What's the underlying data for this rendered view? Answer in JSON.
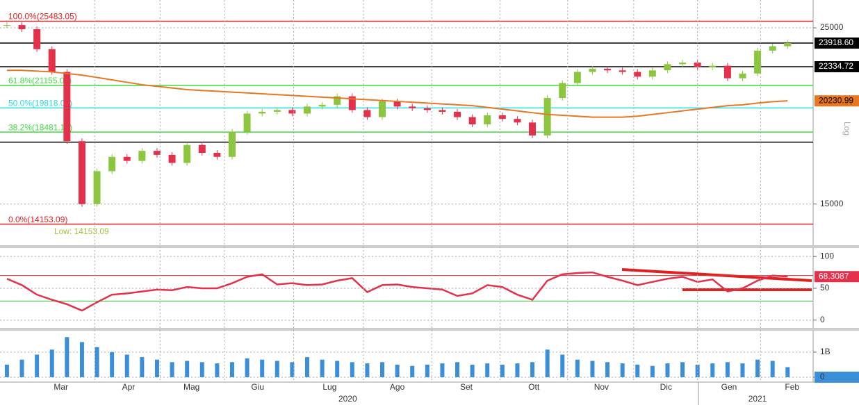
{
  "chart_data": [
    {
      "type": "candlestick",
      "values": [
        25200,
        24900,
        23500,
        22000,
        18000,
        15000,
        16500,
        17200,
        17000,
        17500,
        17300,
        16900,
        17800,
        17400,
        17200,
        18500,
        19500,
        19600,
        19700,
        19500,
        19900,
        20000,
        20500,
        19700,
        19300,
        20200,
        19900,
        19800,
        19700,
        19600,
        19300,
        18900,
        19400,
        19200,
        19000,
        18300,
        20400,
        21300,
        22000,
        22200,
        22100,
        22000,
        21700,
        22100,
        22500,
        22600,
        22300,
        22400,
        21600,
        21900,
        23400,
        23700,
        23918.6
      ],
      "up_color": "#8cc63f",
      "down_color": "#e3304b",
      "ma": {
        "color": "#e87722",
        "values": [
          22100,
          22100,
          22050,
          22000,
          21900,
          21800,
          21650,
          21500,
          21350,
          21200,
          21100,
          21000,
          20900,
          20850,
          20800,
          20750,
          20700,
          20650,
          20600,
          20550,
          20500,
          20450,
          20400,
          20350,
          20300,
          20250,
          20200,
          20150,
          20100,
          20050,
          20000,
          19950,
          19850,
          19750,
          19650,
          19550,
          19450,
          19400,
          19350,
          19300,
          19300,
          19300,
          19350,
          19450,
          19550,
          19650,
          19750,
          19850,
          19950,
          20000,
          20100,
          20180,
          20230.99
        ]
      },
      "ylim": [
        13340,
        27100
      ],
      "log_scale": true,
      "yticks": [
        15000,
        25000
      ],
      "grid": true,
      "axis_label": "Log",
      "levels": [
        {
          "value": 25483.05,
          "label": "100.0%(25483.05)",
          "color": "#e02020"
        },
        {
          "value": 23918.6,
          "tag": "23918.60",
          "color": "#000000"
        },
        {
          "value": 22334.72,
          "tag": "22334.72",
          "color": "#000000"
        },
        {
          "value": 21155.01,
          "label": "61.8%(21155.01)",
          "color": "#3ddc3d"
        },
        {
          "value": 19818.07,
          "label": "50.0%(19818.07)",
          "color": "#2ad8e0"
        },
        {
          "value": 18481.13,
          "label": "38.2%(18481.13)",
          "color": "#3ddc3d"
        },
        {
          "value": 17950,
          "color": "#000000"
        },
        {
          "value": 14153.09,
          "label": "0.0%(14153.09)",
          "color": "#e02020"
        }
      ],
      "annotation": "Low: 14153.09"
    },
    {
      "type": "line",
      "values": [
        65,
        55,
        40,
        32,
        25,
        15,
        28,
        40,
        42,
        45,
        48,
        47,
        52,
        50,
        50,
        58,
        68,
        72,
        56,
        58,
        55,
        56,
        62,
        66,
        44,
        55,
        56,
        52,
        50,
        48,
        38,
        42,
        55,
        52,
        40,
        32,
        62,
        72,
        74,
        75,
        68,
        62,
        55,
        60,
        65,
        68,
        60,
        64,
        45,
        50,
        62,
        70,
        68.3087
      ],
      "color": "#e3304b",
      "ylim": [
        -10,
        110
      ],
      "yticks": [
        0,
        50,
        100
      ],
      "bands": [
        {
          "value": 70,
          "color": "#e03030"
        },
        {
          "value": 30,
          "color": "#30c030"
        }
      ]
    },
    {
      "type": "bar",
      "values": [
        500000000,
        700000000,
        900000000,
        1100000000,
        1600000000,
        1400000000,
        1200000000,
        1000000000,
        900000000,
        800000000,
        700000000,
        600000000,
        650000000,
        600000000,
        550000000,
        600000000,
        750000000,
        700000000,
        650000000,
        600000000,
        800000000,
        700000000,
        650000000,
        600000000,
        550000000,
        600000000,
        500000000,
        450000000,
        500000000,
        550000000,
        600000000,
        500000000,
        550000000,
        500000000,
        550000000,
        600000000,
        1100000000,
        900000000,
        700000000,
        650000000,
        600000000,
        550000000,
        500000000,
        450000000,
        550000000,
        600000000,
        500000000,
        550000000,
        600000000,
        550000000,
        700000000,
        650000000,
        400000000
      ],
      "color": "#3a8fd8",
      "ylim": [
        -140000000,
        1800000000
      ],
      "yticks": [
        0,
        {
          "value": 1000000000,
          "label": "1B"
        }
      ],
      "xlim": [
        -0.46,
        53.7
      ],
      "xticks": [
        {
          "value": 3.6,
          "label": "Mar"
        },
        {
          "value": 8.1,
          "label": "Apr"
        },
        {
          "value": 12.3,
          "label": "Mag"
        },
        {
          "value": 16.7,
          "label": "Giu"
        },
        {
          "value": 21.5,
          "label": "Lug"
        },
        {
          "value": 26,
          "label": "Ago"
        },
        {
          "value": 30.6,
          "label": "Set"
        },
        {
          "value": 35.1,
          "label": "Ott"
        },
        {
          "value": 39.6,
          "label": "Nov"
        },
        {
          "value": 43.9,
          "label": "Dic"
        },
        {
          "value": 48.1,
          "label": "Gen"
        },
        {
          "value": 52.3,
          "label": "Feb"
        }
      ],
      "year_labels": [
        {
          "value": 22.7,
          "label": "2020"
        },
        {
          "value": 50,
          "label": "2021"
        }
      ]
    }
  ]
}
